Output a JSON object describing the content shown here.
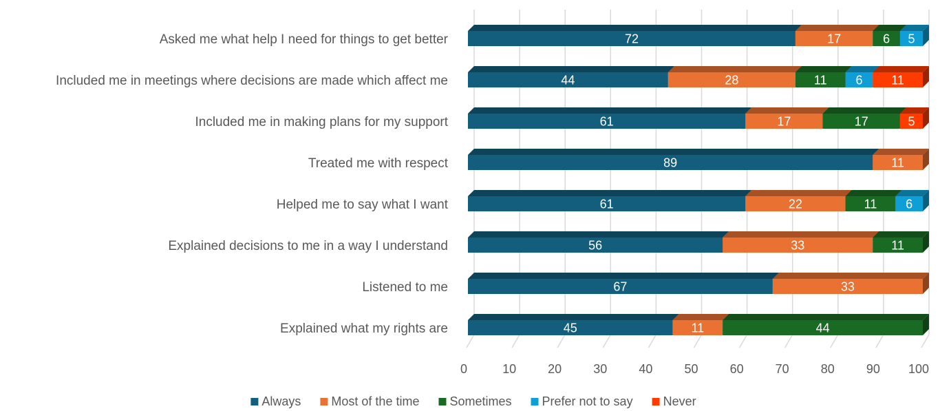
{
  "chart_data": {
    "type": "bar",
    "orientation": "horizontal",
    "stacked": true,
    "style": "3d",
    "categories": [
      "Asked me what help I need for things to get better",
      "Included me in meetings where decisions are made which affect me",
      "Included me in making plans for my support",
      "Treated me with respect",
      "Helped me to say what I want",
      "Explained decisions to me in a way I understand",
      "Listened to me",
      "Explained what my rights are"
    ],
    "series": [
      {
        "name": "Always",
        "color": "#135e7d",
        "values": [
          72,
          44,
          61,
          89,
          61,
          56,
          67,
          45
        ]
      },
      {
        "name": "Most of the time",
        "color": "#e97132",
        "values": [
          17,
          28,
          17,
          11,
          22,
          33,
          33,
          11
        ]
      },
      {
        "name": "Sometimes",
        "color": "#196b24",
        "values": [
          6,
          11,
          17,
          0,
          11,
          11,
          0,
          44
        ]
      },
      {
        "name": "Prefer not to say",
        "color": "#0f9ed5",
        "values": [
          5,
          6,
          0,
          0,
          6,
          0,
          0,
          0
        ]
      },
      {
        "name": "Never",
        "color": "#ff3c00",
        "values": [
          0,
          11,
          5,
          0,
          0,
          0,
          0,
          0
        ]
      }
    ],
    "xlim": [
      0,
      100
    ],
    "xticks": [
      0,
      10,
      20,
      30,
      40,
      50,
      60,
      70,
      80,
      90,
      100
    ],
    "grid": true,
    "legend": "bottom",
    "title": "",
    "xlabel": "",
    "ylabel": ""
  }
}
